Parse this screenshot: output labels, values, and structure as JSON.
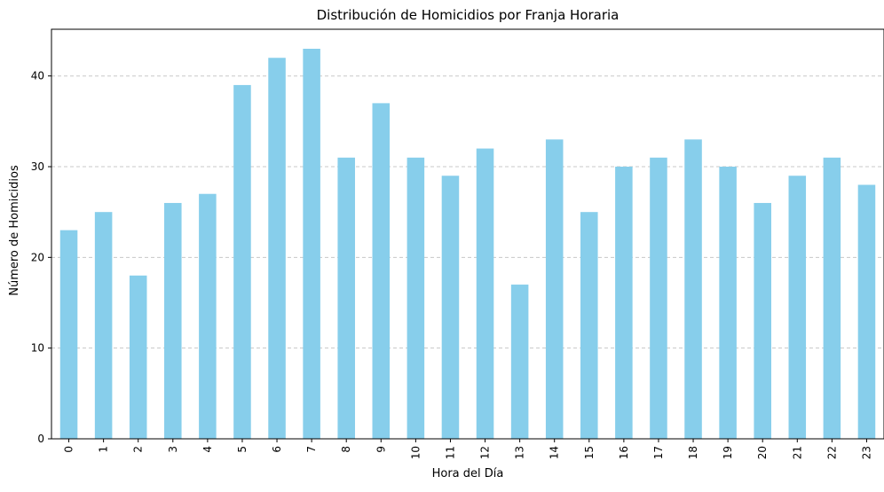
{
  "chart_data": {
    "type": "bar",
    "title": "Distribución de Homicidios por Franja Horaria",
    "xlabel": "Hora del Día",
    "ylabel": "Número de Homicidios",
    "categories": [
      "0",
      "1",
      "2",
      "3",
      "4",
      "5",
      "6",
      "7",
      "8",
      "9",
      "10",
      "11",
      "12",
      "13",
      "14",
      "15",
      "16",
      "17",
      "18",
      "19",
      "20",
      "21",
      "22",
      "23"
    ],
    "values": [
      23,
      25,
      18,
      26,
      27,
      39,
      42,
      43,
      31,
      37,
      31,
      29,
      32,
      17,
      33,
      25,
      30,
      31,
      33,
      30,
      26,
      29,
      31,
      28
    ],
    "ylim": [
      0,
      45.15
    ],
    "yticks": [
      0,
      10,
      20,
      30,
      40
    ],
    "grid": "y-dashed",
    "x_tick_rotation": 90,
    "legend": "none",
    "colors": {
      "bar": "#87ceeb",
      "grid": "#c8c8c8",
      "axis": "#000000"
    }
  }
}
